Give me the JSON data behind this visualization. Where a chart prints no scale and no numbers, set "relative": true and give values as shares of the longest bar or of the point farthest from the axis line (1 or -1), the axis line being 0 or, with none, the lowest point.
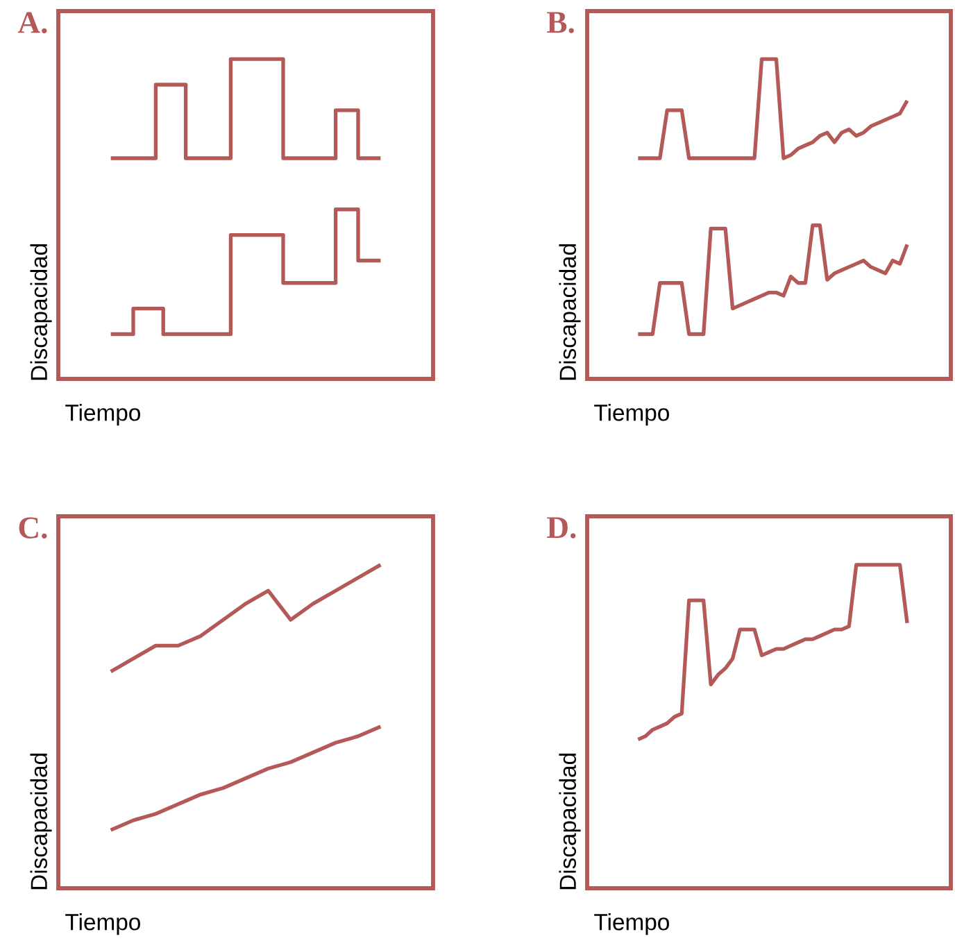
{
  "chart_data": [
    {
      "type": "step",
      "title": "A.",
      "xlabel": "Tiempo",
      "ylabel": "Discapacidad",
      "relative": true,
      "categories": [
        null,
        null,
        null,
        null,
        null,
        null,
        null,
        null,
        null,
        null,
        null,
        null,
        null,
        null,
        null,
        null,
        null,
        null,
        null,
        null,
        null,
        null,
        null,
        null,
        null,
        null,
        null,
        null,
        null,
        null,
        null,
        null,
        null,
        null,
        null,
        null,
        null
      ],
      "series": [
        {
          "color": "#b35a58",
          "values": [
            0.69,
            0.69,
            0.69,
            0.69,
            0.69,
            0.69,
            0.92,
            0.92,
            0.92,
            0.92,
            0.69,
            0.69,
            0.69,
            0.69,
            0.69,
            0.69,
            1,
            1,
            1,
            1,
            1,
            1,
            1,
            0.69,
            0.69,
            0.69,
            0.69,
            0.69,
            0.69,
            0.69,
            0.84,
            0.84,
            0.84,
            0.69,
            0.69,
            0.69,
            0.69
          ]
        },
        {
          "color": "#b35a58",
          "values": [
            0.14,
            0.14,
            0.14,
            0.22,
            0.22,
            0.22,
            0.22,
            0.14,
            0.14,
            0.14,
            0.14,
            0.14,
            0.14,
            0.14,
            0.14,
            0.14,
            0.45,
            0.45,
            0.45,
            0.45,
            0.45,
            0.45,
            0.45,
            0.3,
            0.3,
            0.3,
            0.3,
            0.3,
            0.3,
            0.3,
            0.53,
            0.53,
            0.53,
            0.37,
            0.37,
            0.37,
            0.37
          ]
        }
      ]
    },
    {
      "type": "line",
      "title": "B.",
      "xlabel": "Tiempo",
      "ylabel": "Discapacidad",
      "relative": true,
      "categories": [
        null,
        null,
        null,
        null,
        null,
        null,
        null,
        null,
        null,
        null,
        null,
        null,
        null,
        null,
        null,
        null,
        null,
        null,
        null,
        null,
        null,
        null,
        null,
        null,
        null,
        null,
        null,
        null,
        null,
        null,
        null,
        null,
        null,
        null,
        null,
        null,
        null,
        null
      ],
      "series": [
        {
          "color": "#b35a58",
          "values": [
            0.69,
            0.69,
            0.69,
            0.69,
            0.84,
            0.84,
            0.84,
            0.69,
            0.69,
            0.69,
            0.69,
            0.69,
            0.69,
            0.69,
            0.69,
            0.69,
            0.69,
            1,
            1,
            1,
            0.69,
            0.7,
            0.72,
            0.73,
            0.74,
            0.76,
            0.77,
            0.74,
            0.77,
            0.78,
            0.76,
            0.77,
            0.79,
            0.8,
            0.81,
            0.82,
            0.83,
            0.87
          ]
        },
        {
          "color": "#b35a58",
          "values": [
            0.14,
            0.14,
            0.14,
            0.3,
            0.3,
            0.3,
            0.3,
            0.14,
            0.14,
            0.14,
            0.47,
            0.47,
            0.47,
            0.22,
            0.23,
            0.24,
            0.25,
            0.26,
            0.27,
            0.27,
            0.26,
            0.32,
            0.3,
            0.3,
            0.48,
            0.48,
            0.31,
            0.33,
            0.34,
            0.35,
            0.36,
            0.37,
            0.35,
            0.34,
            0.33,
            0.37,
            0.36,
            0.42
          ]
        }
      ]
    },
    {
      "type": "line",
      "title": "C.",
      "xlabel": "Tiempo",
      "ylabel": "Discapacidad",
      "relative": true,
      "categories": [
        null,
        null,
        null,
        null,
        null,
        null,
        null,
        null,
        null,
        null,
        null,
        null,
        null
      ],
      "series": [
        {
          "color": "#b35a58",
          "values": [
            0.67,
            0.71,
            0.75,
            0.75,
            0.78,
            0.83,
            0.88,
            0.92,
            0.83,
            0.88,
            0.92,
            0.96,
            1
          ]
        },
        {
          "color": "#b35a58",
          "values": [
            0.18,
            0.21,
            0.23,
            0.26,
            0.29,
            0.31,
            0.34,
            0.37,
            0.39,
            0.42,
            0.45,
            0.47,
            0.5
          ]
        }
      ]
    },
    {
      "type": "line",
      "title": "D.",
      "xlabel": "Tiempo",
      "ylabel": "Discapacidad",
      "relative": true,
      "categories": [
        null,
        null,
        null,
        null,
        null,
        null,
        null,
        null,
        null,
        null,
        null,
        null,
        null,
        null,
        null,
        null,
        null,
        null,
        null,
        null,
        null,
        null,
        null,
        null,
        null,
        null,
        null,
        null,
        null,
        null,
        null,
        null,
        null,
        null,
        null,
        null,
        null,
        null
      ],
      "series": [
        {
          "color": "#b35a58",
          "values": [
            0.46,
            0.47,
            0.49,
            0.5,
            0.51,
            0.53,
            0.54,
            0.89,
            0.89,
            0.89,
            0.63,
            0.66,
            0.68,
            0.71,
            0.8,
            0.8,
            0.8,
            0.72,
            0.73,
            0.74,
            0.74,
            0.75,
            0.76,
            0.77,
            0.77,
            0.78,
            0.79,
            0.8,
            0.8,
            0.81,
            1,
            1,
            1,
            1,
            1,
            1,
            1,
            0.82
          ]
        }
      ]
    }
  ]
}
